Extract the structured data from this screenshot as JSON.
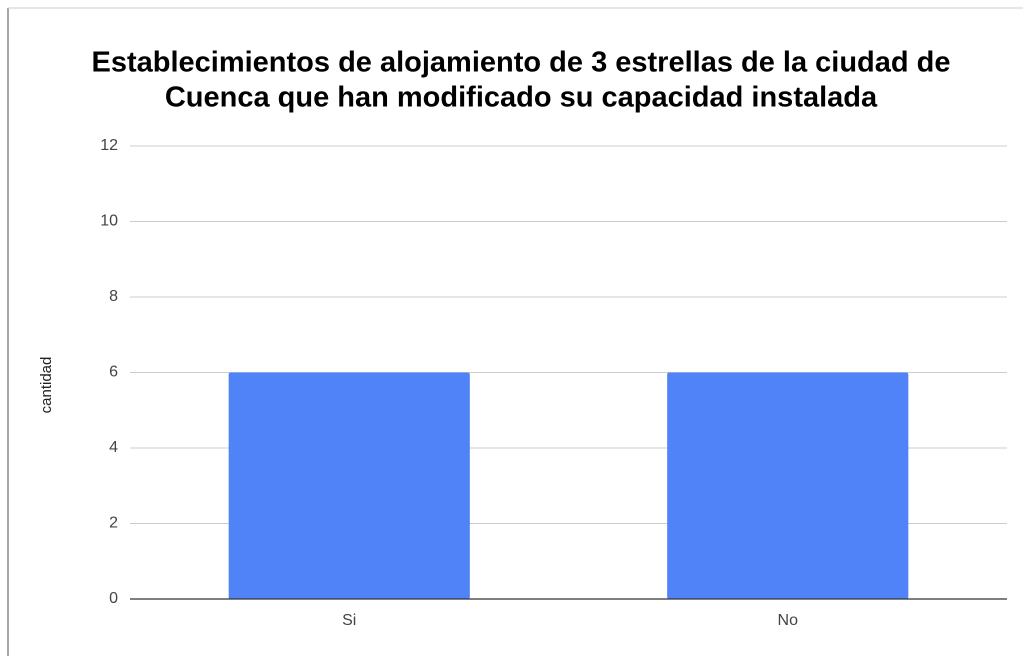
{
  "chart_data": {
    "type": "bar",
    "title": [
      "Establecimientos de alojamiento de 3 estrellas de la ciudad de",
      "Cuenca que han modificado su capacidad instalada"
    ],
    "y_label": "cantidad",
    "categories": [
      "Si",
      "No"
    ],
    "values": [
      6,
      6
    ],
    "color": "#5083f8",
    "ylim": [
      0,
      12
    ],
    "yticks": [
      0,
      2,
      4,
      6,
      8,
      10,
      12
    ],
    "grid": true
  }
}
